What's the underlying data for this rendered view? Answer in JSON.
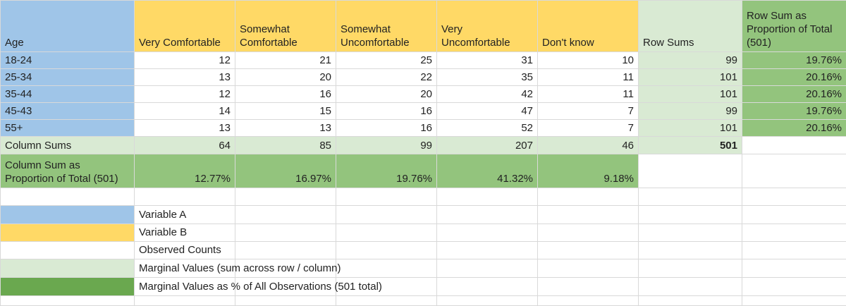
{
  "table": {
    "header": {
      "age": "Age",
      "cols": [
        "Very Comfortable",
        "Somewhat Comfortable",
        "Somewhat Uncomfortable",
        "Very Uncomfortable",
        "Don't know"
      ],
      "row_sums": "Row Sums",
      "row_prop": "Row Sum as Proportion of Total (501)"
    },
    "rows": [
      {
        "age": "18-24",
        "values": [
          "12",
          "21",
          "25",
          "31",
          "10"
        ],
        "sum": "99",
        "prop": "19.76%"
      },
      {
        "age": "25-34",
        "values": [
          "13",
          "20",
          "22",
          "35",
          "11"
        ],
        "sum": "101",
        "prop": "20.16%"
      },
      {
        "age": "35-44",
        "values": [
          "12",
          "16",
          "20",
          "42",
          "11"
        ],
        "sum": "101",
        "prop": "20.16%"
      },
      {
        "age": "45-43",
        "values": [
          "14",
          "15",
          "16",
          "47",
          "7"
        ],
        "sum": "99",
        "prop": "19.76%"
      },
      {
        "age": "55+",
        "values": [
          "13",
          "13",
          "16",
          "52",
          "7"
        ],
        "sum": "101",
        "prop": "20.16%"
      }
    ],
    "column_sums": {
      "label": "Column Sums",
      "values": [
        "64",
        "85",
        "99",
        "207",
        "46"
      ],
      "total": "501"
    },
    "column_props": {
      "label": "Column Sum as Proportion of Total (501)",
      "values": [
        "12.77%",
        "16.97%",
        "19.76%",
        "41.32%",
        "9.18%"
      ]
    }
  },
  "legend": [
    {
      "label": "Variable A",
      "color": "#9fc5e8"
    },
    {
      "label": "Variable B",
      "color": "#ffd966"
    },
    {
      "label": "Observed Counts",
      "color": "#ffffff"
    },
    {
      "label": "Marginal Values (sum across row / column)",
      "color": "#d9ead3"
    },
    {
      "label": "Marginal Values as % of All Observations (501 total)",
      "color": "#6aa84f"
    }
  ]
}
